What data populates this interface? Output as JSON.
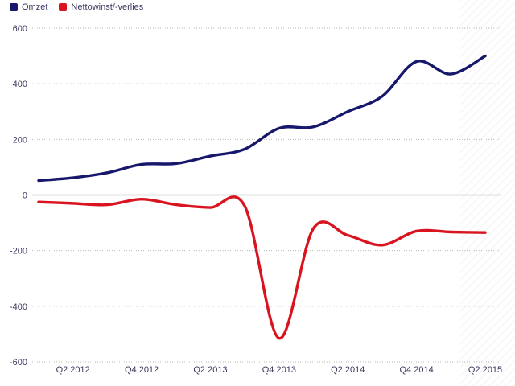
{
  "chart_data": {
    "type": "line",
    "title": "",
    "categories": [
      "Q1 2012",
      "Q2 2012",
      "Q3 2012",
      "Q4 2012",
      "Q1 2013",
      "Q2 2013",
      "Q3 2013",
      "Q4 2013",
      "Q1 2014",
      "Q2 2014",
      "Q3 2014",
      "Q4 2014",
      "Q1 2015",
      "Q2 2015"
    ],
    "x_tick_labels": [
      "Q2 2012",
      "Q4 2012",
      "Q2 2013",
      "Q4 2013",
      "Q2 2014",
      "Q4 2014",
      "Q2 2015"
    ],
    "series": [
      {
        "name": "Omzet",
        "color": "#17176b",
        "values": [
          52,
          62,
          80,
          110,
          113,
          140,
          165,
          240,
          245,
          300,
          355,
          480,
          435,
          500
        ]
      },
      {
        "name": "Nettowinst/-verlies",
        "color": "#d9141f",
        "values": [
          -25,
          -30,
          -35,
          -15,
          -35,
          -45,
          -40,
          -515,
          -120,
          -145,
          -180,
          -130,
          -133,
          -135
        ]
      }
    ],
    "ylim": [
      -600,
      600
    ],
    "y_ticks": [
      600,
      400,
      200,
      0,
      -200,
      -400,
      -600
    ],
    "grid": "horizontal dotted gridlines, solid gray zero line",
    "legend_position": "top-left",
    "axis_text_color": "#39395f",
    "gridline_color": "#b8b8b8",
    "zero_line_color": "#7f7f7f"
  }
}
